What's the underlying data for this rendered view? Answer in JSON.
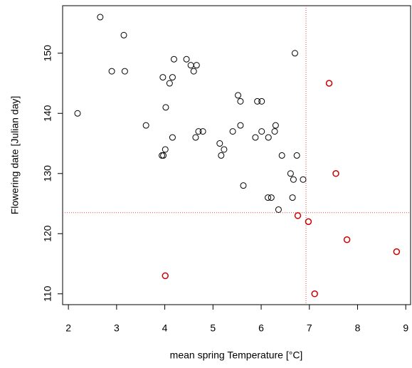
{
  "chart_data": {
    "type": "scatter",
    "xlabel": "mean spring Temperature [°C]",
    "ylabel": "Flowering date [Julian day]",
    "xlim": [
      1.88,
      9.1
    ],
    "ylim": [
      108.2,
      157.9
    ],
    "xticks": [
      2,
      3,
      4,
      5,
      6,
      7,
      8,
      9
    ],
    "yticks": [
      110,
      120,
      130,
      140,
      150
    ],
    "vline": 6.93,
    "hline": 123.5,
    "ref_color": "#e34a4a",
    "series": [
      {
        "color": "#000000",
        "x": [
          2.19,
          2.66,
          2.9,
          3.15,
          3.17,
          3.61,
          3.96,
          3.94,
          3.97,
          4.01,
          4.02,
          4.1,
          4.16,
          4.16,
          4.19,
          4.45,
          4.54,
          4.6,
          4.66,
          4.64,
          4.7,
          4.79,
          5.14,
          5.17,
          5.23,
          5.41,
          5.52,
          5.57,
          5.57,
          5.63,
          5.88,
          5.92,
          6.01,
          6.01,
          6.15,
          6.14,
          6.21,
          6.3,
          6.28,
          6.36,
          6.43,
          6.61,
          6.67,
          6.65,
          6.7,
          6.74,
          6.87
        ],
        "y": [
          140,
          156,
          147,
          153,
          147,
          138,
          146,
          133,
          133,
          134,
          141,
          145,
          146,
          136,
          149,
          149,
          148,
          147,
          148,
          136,
          137,
          137,
          135,
          133,
          134,
          137,
          143,
          142,
          138,
          128,
          136,
          142,
          142,
          137,
          136,
          126,
          126,
          138,
          137,
          124,
          133,
          130,
          129,
          126,
          150,
          133,
          129
        ]
      },
      {
        "color": "#cc0000",
        "x": [
          4.01,
          6.76,
          6.98,
          7.11,
          7.41,
          7.55,
          7.78,
          8.81
        ],
        "y": [
          113,
          123,
          122,
          110,
          145,
          130,
          119,
          117
        ]
      }
    ]
  }
}
